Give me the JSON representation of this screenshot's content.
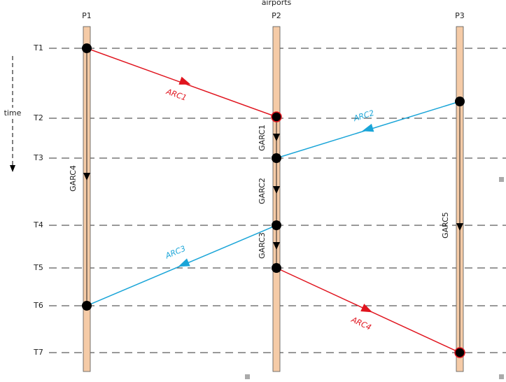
{
  "title": "airports",
  "processes": [
    "P1",
    "P2",
    "P3"
  ],
  "times": [
    "T1",
    "T2",
    "T3",
    "T4",
    "T5",
    "T6",
    "T7"
  ],
  "axis_label": "time",
  "arcs": [
    "ARC1",
    "ARC2",
    "ARC3",
    "ARC4"
  ],
  "global_arcs": [
    "GARC1",
    "GARC2",
    "GARC3",
    "GARC4",
    "GARC5"
  ]
}
